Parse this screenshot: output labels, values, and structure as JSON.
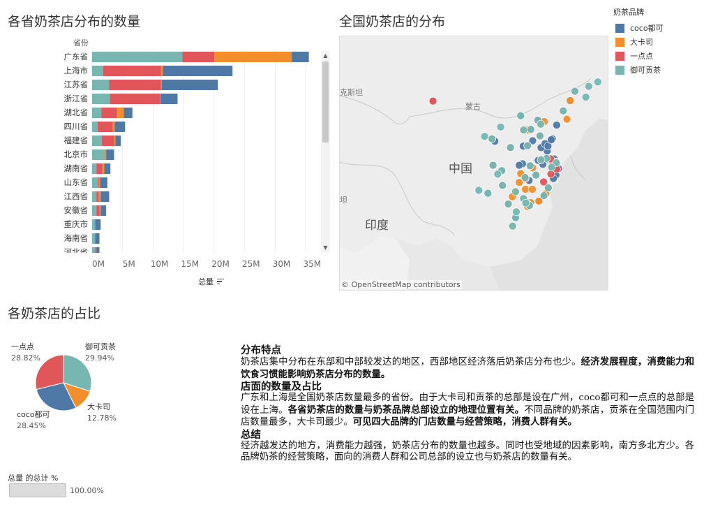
{
  "bar_chart": {
    "title": "各省奶茶店分布的数量",
    "axis_label": "总量",
    "row_header": "省份"
  },
  "map": {
    "title": "全国奶茶店的分布",
    "labels": {
      "kazakh": "克斯坦",
      "mongolia": "蒙古",
      "china": "中国",
      "india": "印度",
      "left_edge": "坦"
    },
    "credit": "© OpenStreetMap contributors"
  },
  "legend": {
    "title": "奶茶品牌",
    "items": [
      {
        "label": "coco都可",
        "color": "#4e79a7"
      },
      {
        "label": "大卡司",
        "color": "#f28e2b"
      },
      {
        "label": "一点点",
        "color": "#e15759"
      },
      {
        "label": "御可贡茶",
        "color": "#76b7b2"
      }
    ]
  },
  "pie": {
    "title": "各奶茶店的占比",
    "total_label": "总量 的总计 %",
    "total_value": "100.00%"
  },
  "text": {
    "h1": "分布特点",
    "p1a": "奶茶店集中分布在东部和中部较发达的地区，西部地区经济落后奶茶店分布也少。",
    "p1b": "经济发展程度，消费能力和饮食习惯能影响奶茶店分布的数量。",
    "h2": "店面的数量及占比",
    "p2a": "广东和上海是全国奶茶店数量最多的省份。由于大卡司和贡茶的总部是设在广州，coco都可和一点点的总部是设在上海。",
    "p2b": "各省奶茶店的数量与奶茶品牌总部设立的地理位置有关。",
    "p2c": "不同品牌的奶茶店，贡茶在全国范围内门店数量最多，大卡司最少。",
    "p2d": "可见四大品牌的门店数量与经营策略，消费人群有关。",
    "h3": "总结",
    "p3": "经济越发达的地方，消费能力越强，奶茶店分布的数量也越多。同时也受地域的因素影响，南方多北方少。各品牌奶茶的经营策略，面向的消费人群和公司总部的设立也与奶茶店的数量有关。"
  },
  "chart_data": [
    {
      "type": "bar",
      "orientation": "horizontal",
      "stacked": true,
      "title": "各省奶茶店分布的数量",
      "xlabel": "总量",
      "ylabel": "省份",
      "xlim": [
        0,
        37000000
      ],
      "xticks": [
        "0M",
        "5M",
        "10M",
        "15M",
        "20M",
        "25M",
        "30M",
        "35M"
      ],
      "categories": [
        "广东省",
        "上海市",
        "江苏省",
        "浙江省",
        "湖北省",
        "四川省",
        "福建省",
        "北京市",
        "湖南省",
        "山东省",
        "江西省",
        "安徽省",
        "重庆市",
        "海南省",
        "河北省"
      ],
      "series": [
        {
          "name": "御可贡茶",
          "color": "#76b7b2",
          "values": [
            14800000,
            1800000,
            2800000,
            2900000,
            1500000,
            900000,
            1600000,
            2000000,
            700000,
            900000,
            700000,
            700000,
            500000,
            500000,
            500000
          ]
        },
        {
          "name": "一点点",
          "color": "#e15759",
          "values": [
            5200000,
            9500000,
            8500000,
            8200000,
            2600000,
            2500000,
            2000000,
            0,
            1000000,
            200000,
            400000,
            500000,
            0,
            0,
            200000
          ]
        },
        {
          "name": "大卡司",
          "color": "#f28e2b",
          "values": [
            12700000,
            300000,
            100000,
            100000,
            1100000,
            300000,
            200000,
            300000,
            300000,
            200000,
            300000,
            200000,
            0,
            0,
            0
          ]
        },
        {
          "name": "coco都可",
          "color": "#4e79a7",
          "values": [
            2800000,
            11400000,
            9200000,
            2800000,
            1400000,
            1700000,
            900000,
            1300000,
            1000000,
            1200000,
            1400000,
            900000,
            900000,
            700000,
            500000
          ]
        }
      ],
      "grid": true,
      "scrollable": true
    },
    {
      "type": "pie",
      "title": "各奶茶店的占比",
      "slices": [
        {
          "label": "御可贡茶",
          "value": 29.94,
          "display": "29.94%",
          "color": "#76b7b2"
        },
        {
          "label": "大卡司",
          "value": 12.78,
          "display": "12.78%",
          "color": "#f28e2b"
        },
        {
          "label": "coco都可",
          "value": 28.45,
          "display": "28.45%",
          "color": "#4e79a7"
        },
        {
          "label": "一点点",
          "value": 28.82,
          "display": "28.82%",
          "color": "#e15759"
        }
      ]
    },
    {
      "type": "scatter",
      "title": "全国奶茶店的分布",
      "xlabel": "longitude",
      "ylabel": "latitude",
      "xlim": [
        62,
        136
      ],
      "ylim": [
        5,
        57
      ],
      "series": [
        {
          "name": "coco都可",
          "color": "#4e79a7",
          "points": [
            [
              87.6,
              43.8
            ],
            [
              116.4,
              39.9
            ],
            [
              117.2,
              39.1
            ],
            [
              121.5,
              31.2
            ],
            [
              120.2,
              30.3
            ],
            [
              118.8,
              32.1
            ],
            [
              114.3,
              30.6
            ],
            [
              104.1,
              30.7
            ],
            [
              106.5,
              29.6
            ],
            [
              113.3,
              23.1
            ],
            [
              114.1,
              22.5
            ],
            [
              119.3,
              26.1
            ],
            [
              112.9,
              28.2
            ],
            [
              115.9,
              28.7
            ],
            [
              117.3,
              31.8
            ],
            [
              113.6,
              34.7
            ],
            [
              108.9,
              34.3
            ],
            [
              117.0,
              36.7
            ],
            [
              120.4,
              36.1
            ],
            [
              123.4,
              41.8
            ],
            [
              125.3,
              43.9
            ],
            [
              126.6,
              45.8
            ],
            [
              121.6,
              38.9
            ],
            [
              110.3,
              20.0
            ],
            [
              106.7,
              26.6
            ],
            [
              102.7,
              25.0
            ],
            [
              108.3,
              22.8
            ],
            [
              114.5,
              38.0
            ],
            [
              112.5,
              37.9
            ],
            [
              111.7,
              40.8
            ],
            [
              120.3,
              31.6
            ],
            [
              120.6,
              31.3
            ],
            [
              119.9,
              32.0
            ],
            [
              120.9,
              32.0
            ],
            [
              121.4,
              28.7
            ],
            [
              120.7,
              28.0
            ],
            [
              119.0,
              33.6
            ],
            [
              117.3,
              34.3
            ],
            [
              122.1,
              30.0
            ],
            [
              118.1,
              24.5
            ],
            [
              113.1,
              23.0
            ],
            [
              114.4,
              23.1
            ],
            [
              113.6,
              22.3
            ],
            [
              116.7,
              23.4
            ],
            [
              112.2,
              31.0
            ],
            [
              111.3,
              30.7
            ],
            [
              115.0,
              35.7
            ],
            [
              118.4,
              35.1
            ],
            [
              119.2,
              34.6
            ],
            [
              120.1,
              35.9
            ],
            [
              104.6,
              35.6
            ],
            [
              102.8,
              24.9
            ],
            [
              121.2,
              31.4
            ],
            [
              119.5,
              31.8
            ],
            [
              120.5,
              30.9
            ],
            [
              117.8,
              30.9
            ],
            [
              116.5,
              31.7
            ],
            [
              113.7,
              22.8
            ],
            [
              114.0,
              27.6
            ],
            [
              112.4,
              34.6
            ]
          ]
        },
        {
          "name": "大卡司",
          "color": "#f28e2b",
          "points": [
            [
              113.3,
              23.1
            ],
            [
              114.1,
              22.5
            ],
            [
              113.1,
              23.0
            ],
            [
              114.4,
              23.1
            ],
            [
              113.6,
              22.3
            ],
            [
              116.7,
              23.4
            ],
            [
              113.7,
              22.8
            ],
            [
              112.9,
              28.2
            ],
            [
              114.3,
              30.6
            ],
            [
              115.9,
              28.7
            ],
            [
              112.5,
              23.9
            ],
            [
              110.3,
              25.3
            ],
            [
              108.3,
              22.8
            ],
            [
              109.4,
              24.3
            ],
            [
              111.3,
              27.2
            ],
            [
              113.0,
              25.8
            ],
            [
              114.9,
              25.8
            ],
            [
              116.4,
              39.9
            ],
            [
              117.2,
              39.1
            ],
            [
              118.2,
              39.6
            ],
            [
              123.4,
              41.8
            ],
            [
              126.6,
              45.8
            ],
            [
              125.3,
              43.9
            ],
            [
              124.4,
              40.1
            ],
            [
              113.6,
              34.7
            ],
            [
              112.5,
              37.9
            ],
            [
              106.7,
              26.6
            ],
            [
              103.8,
              36.1
            ],
            [
              117.0,
              36.7
            ],
            [
              119.3,
              26.1
            ],
            [
              118.6,
              24.9
            ],
            [
              121.5,
              31.2
            ],
            [
              120.2,
              30.3
            ],
            [
              104.1,
              30.7
            ],
            [
              109.5,
              18.3
            ],
            [
              113.6,
              37.9
            ],
            [
              111.7,
              29.0
            ],
            [
              115.0,
              30.2
            ]
          ]
        },
        {
          "name": "一点点",
          "color": "#e15759",
          "points": [
            [
              121.5,
              31.2
            ],
            [
              121.3,
              31.1
            ],
            [
              120.2,
              30.3
            ],
            [
              120.6,
              31.3
            ],
            [
              118.8,
              32.1
            ],
            [
              120.3,
              31.6
            ],
            [
              119.9,
              32.0
            ],
            [
              121.6,
              29.9
            ],
            [
              114.3,
              30.6
            ],
            [
              112.9,
              28.2
            ],
            [
              104.1,
              30.7
            ],
            [
              106.5,
              29.6
            ],
            [
              119.3,
              26.1
            ],
            [
              118.1,
              24.5
            ],
            [
              113.3,
              23.1
            ],
            [
              114.1,
              22.5
            ],
            [
              117.3,
              31.8
            ],
            [
              113.6,
              34.7
            ],
            [
              116.4,
              39.9
            ],
            [
              117.0,
              36.7
            ],
            [
              108.9,
              34.3
            ],
            [
              113.0,
              28.0
            ],
            [
              115.9,
              28.7
            ],
            [
              114.5,
              38.0
            ],
            [
              87.6,
              43.8
            ],
            [
              118.0,
              27.3
            ],
            [
              120.0,
              28.9
            ],
            [
              108.3,
              22.8
            ]
          ]
        },
        {
          "name": "御可贡茶",
          "color": "#76b7b2",
          "points": [
            [
              113.3,
              23.1
            ],
            [
              114.1,
              22.5
            ],
            [
              112.5,
              23.9
            ],
            [
              110.3,
              25.3
            ],
            [
              108.3,
              22.8
            ],
            [
              104.1,
              30.7
            ],
            [
              106.5,
              29.6
            ],
            [
              102.7,
              25.0
            ],
            [
              106.7,
              26.6
            ],
            [
              114.3,
              30.6
            ],
            [
              112.9,
              28.2
            ],
            [
              113.6,
              34.7
            ],
            [
              108.9,
              34.3
            ],
            [
              112.5,
              37.9
            ],
            [
              116.4,
              39.9
            ],
            [
              117.2,
              39.1
            ],
            [
              117.0,
              36.7
            ],
            [
              121.5,
              31.2
            ],
            [
              120.2,
              30.3
            ],
            [
              118.8,
              32.1
            ],
            [
              119.3,
              26.1
            ],
            [
              118.1,
              24.5
            ],
            [
              123.4,
              41.8
            ],
            [
              126.6,
              45.8
            ],
            [
              129.6,
              44.6
            ],
            [
              130.4,
              46.8
            ],
            [
              132.9,
              47.7
            ],
            [
              103.8,
              36.1
            ],
            [
              101.8,
              36.6
            ],
            [
              106.2,
              38.5
            ],
            [
              111.7,
              40.8
            ],
            [
              115.9,
              28.7
            ],
            [
              117.3,
              31.8
            ],
            [
              110.3,
              20.0
            ],
            [
              109.5,
              18.3
            ],
            [
              114.5,
              38.0
            ],
            [
              113.1,
              23.0
            ],
            [
              110.5,
              21.2
            ],
            [
              105.4,
              28.9
            ],
            [
              100.2,
              25.6
            ]
          ]
        }
      ]
    }
  ]
}
